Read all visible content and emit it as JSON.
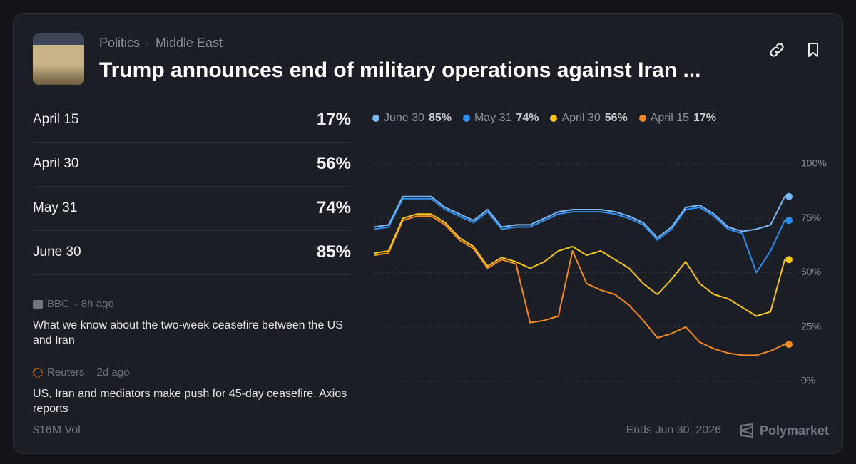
{
  "header": {
    "categories": [
      "Politics",
      "Middle East"
    ],
    "title": "Trump announces end of military operations against Iran ..."
  },
  "outcomes": [
    {
      "name": "April 15",
      "chance": "17%"
    },
    {
      "name": "April 30",
      "chance": "56%"
    },
    {
      "name": "May 31",
      "chance": "74%"
    },
    {
      "name": "June 30",
      "chance": "85%"
    }
  ],
  "news": [
    {
      "source": "BBC",
      "time": "8h ago",
      "headline": "What we know about the two-week ceasefire between the US and Iran"
    },
    {
      "source": "Reuters",
      "time": "2d ago",
      "headline": "US, Iran and mediators make push for 45-day ceasefire, Axios reports"
    }
  ],
  "footer": {
    "volume": "$16M Vol",
    "ends": "Ends Jun 30, 2026",
    "brand": "Polymarket"
  },
  "chart": {
    "type": "line",
    "ylim": [
      0,
      100
    ],
    "yticks": [
      {
        "value": 100,
        "label": "100%"
      },
      {
        "value": 75,
        "label": "75%"
      },
      {
        "value": 50,
        "label": "50%"
      },
      {
        "value": 25,
        "label": "25%"
      },
      {
        "value": 0,
        "label": "0%"
      }
    ],
    "grid": true,
    "series": [
      {
        "name": "June 30",
        "color": "#7ab8f5",
        "current": {
          "value": 85,
          "label": "85%"
        },
        "values": [
          71,
          72,
          85,
          85,
          85,
          80,
          77,
          74,
          79,
          71,
          72,
          72,
          75,
          78,
          79,
          79,
          79,
          78,
          76,
          73,
          66,
          71,
          80,
          81,
          77,
          71,
          69,
          70,
          72,
          85
        ]
      },
      {
        "name": "May 31",
        "color": "#2f8ff0",
        "current": {
          "value": 74,
          "label": "74%"
        },
        "values": [
          70,
          71,
          84,
          84,
          84,
          79,
          76,
          73,
          78,
          70,
          71,
          71,
          74,
          77,
          78,
          78,
          78,
          77,
          75,
          72,
          65,
          70,
          79,
          80,
          76,
          70,
          68,
          50,
          60,
          74
        ]
      },
      {
        "name": "April 30",
        "color": "#f5c518",
        "current": {
          "value": 56,
          "label": "56%"
        },
        "values": [
          59,
          60,
          75,
          77,
          77,
          73,
          66,
          62,
          53,
          57,
          55,
          52,
          55,
          60,
          62,
          58,
          60,
          56,
          52,
          45,
          40,
          47,
          55,
          45,
          40,
          38,
          34,
          30,
          32,
          56
        ]
      },
      {
        "name": "April 15",
        "color": "#f5891f",
        "current": {
          "value": 17,
          "label": "17%"
        },
        "values": [
          58,
          59,
          74,
          76,
          76,
          72,
          65,
          61,
          52,
          56,
          54,
          27,
          28,
          30,
          60,
          45,
          42,
          40,
          35,
          28,
          20,
          22,
          25,
          18,
          15,
          13,
          12,
          12,
          14,
          17
        ]
      }
    ]
  }
}
